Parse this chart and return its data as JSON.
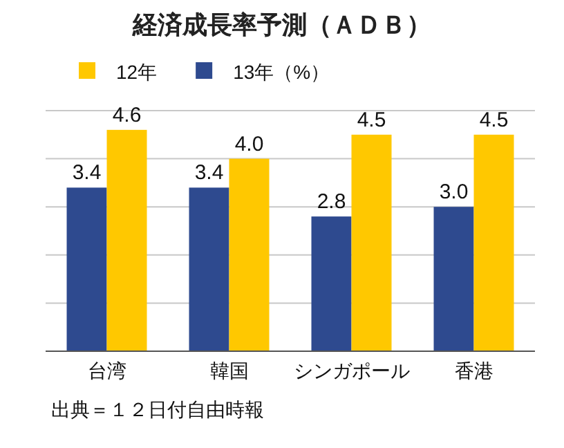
{
  "chart_data": {
    "type": "bar",
    "title": "経済成長率予測（ＡＤＢ）",
    "categories": [
      "台湾",
      "韓国",
      "シンガポール",
      "香港"
    ],
    "series": [
      {
        "name": "13年（%）",
        "color": "#2e4a8f",
        "values": [
          3.4,
          3.4,
          2.8,
          3.0
        ],
        "value_labels": [
          "3.4",
          "3.4",
          "2.8",
          "3.0"
        ]
      },
      {
        "name": "12年",
        "color": "#ffc800",
        "values": [
          4.6,
          4.0,
          4.5,
          4.5
        ],
        "value_labels": [
          "4.6",
          "4.0",
          "4.5",
          "4.5"
        ]
      }
    ],
    "ylim": [
      0,
      5
    ],
    "yticks": [
      {
        "value": 0,
        "label": null
      },
      {
        "value": 1,
        "label": null
      },
      {
        "value": 2,
        "label": null
      },
      {
        "value": 3,
        "label": null
      },
      {
        "value": 4,
        "label": null
      },
      {
        "value": 5,
        "label": null
      }
    ],
    "grid": "y",
    "legend": "top",
    "tick_labels": "x",
    "annotations": [
      "出典＝１２日付自由時報"
    ]
  }
}
